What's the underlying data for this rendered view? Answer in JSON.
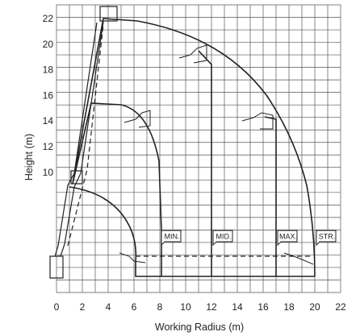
{
  "chart_data": {
    "type": "diagram",
    "xlabel": "Working Radius (m)",
    "ylabel": "Height (m)",
    "x_ticks": [
      "0",
      "2",
      "4",
      "6",
      "8",
      "10",
      "12",
      "14",
      "16",
      "18",
      "20",
      "22"
    ],
    "y_ticks": [
      "10",
      "12",
      "14",
      "16",
      "18",
      "20",
      "22"
    ],
    "x_range": [
      0,
      22
    ],
    "grid": true,
    "outreach_modes": [
      {
        "label": "MIN.",
        "radius_m": 8.0
      },
      {
        "label": "MID.",
        "radius_m": 12.0
      },
      {
        "label": "MAX.",
        "radius_m": 17.0
      },
      {
        "label": "STR.",
        "radius_m": 20.0
      }
    ]
  },
  "colors": {
    "grid": "#555555",
    "lines": "#222222",
    "background": "#ffffff"
  }
}
